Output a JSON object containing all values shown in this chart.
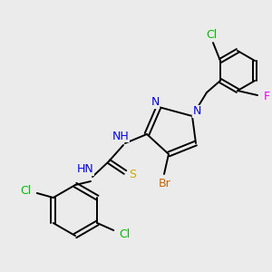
{
  "bg_color": "#ebebeb",
  "colors": {
    "C": "#000000",
    "N": "#0000ff",
    "S": "#ccaa00",
    "Br": "#cc6600",
    "Cl": "#00bb00",
    "F": "#ee00ee",
    "H": "#888888",
    "bond": "#000000"
  },
  "figsize": [
    3.0,
    3.0
  ],
  "dpi": 100
}
